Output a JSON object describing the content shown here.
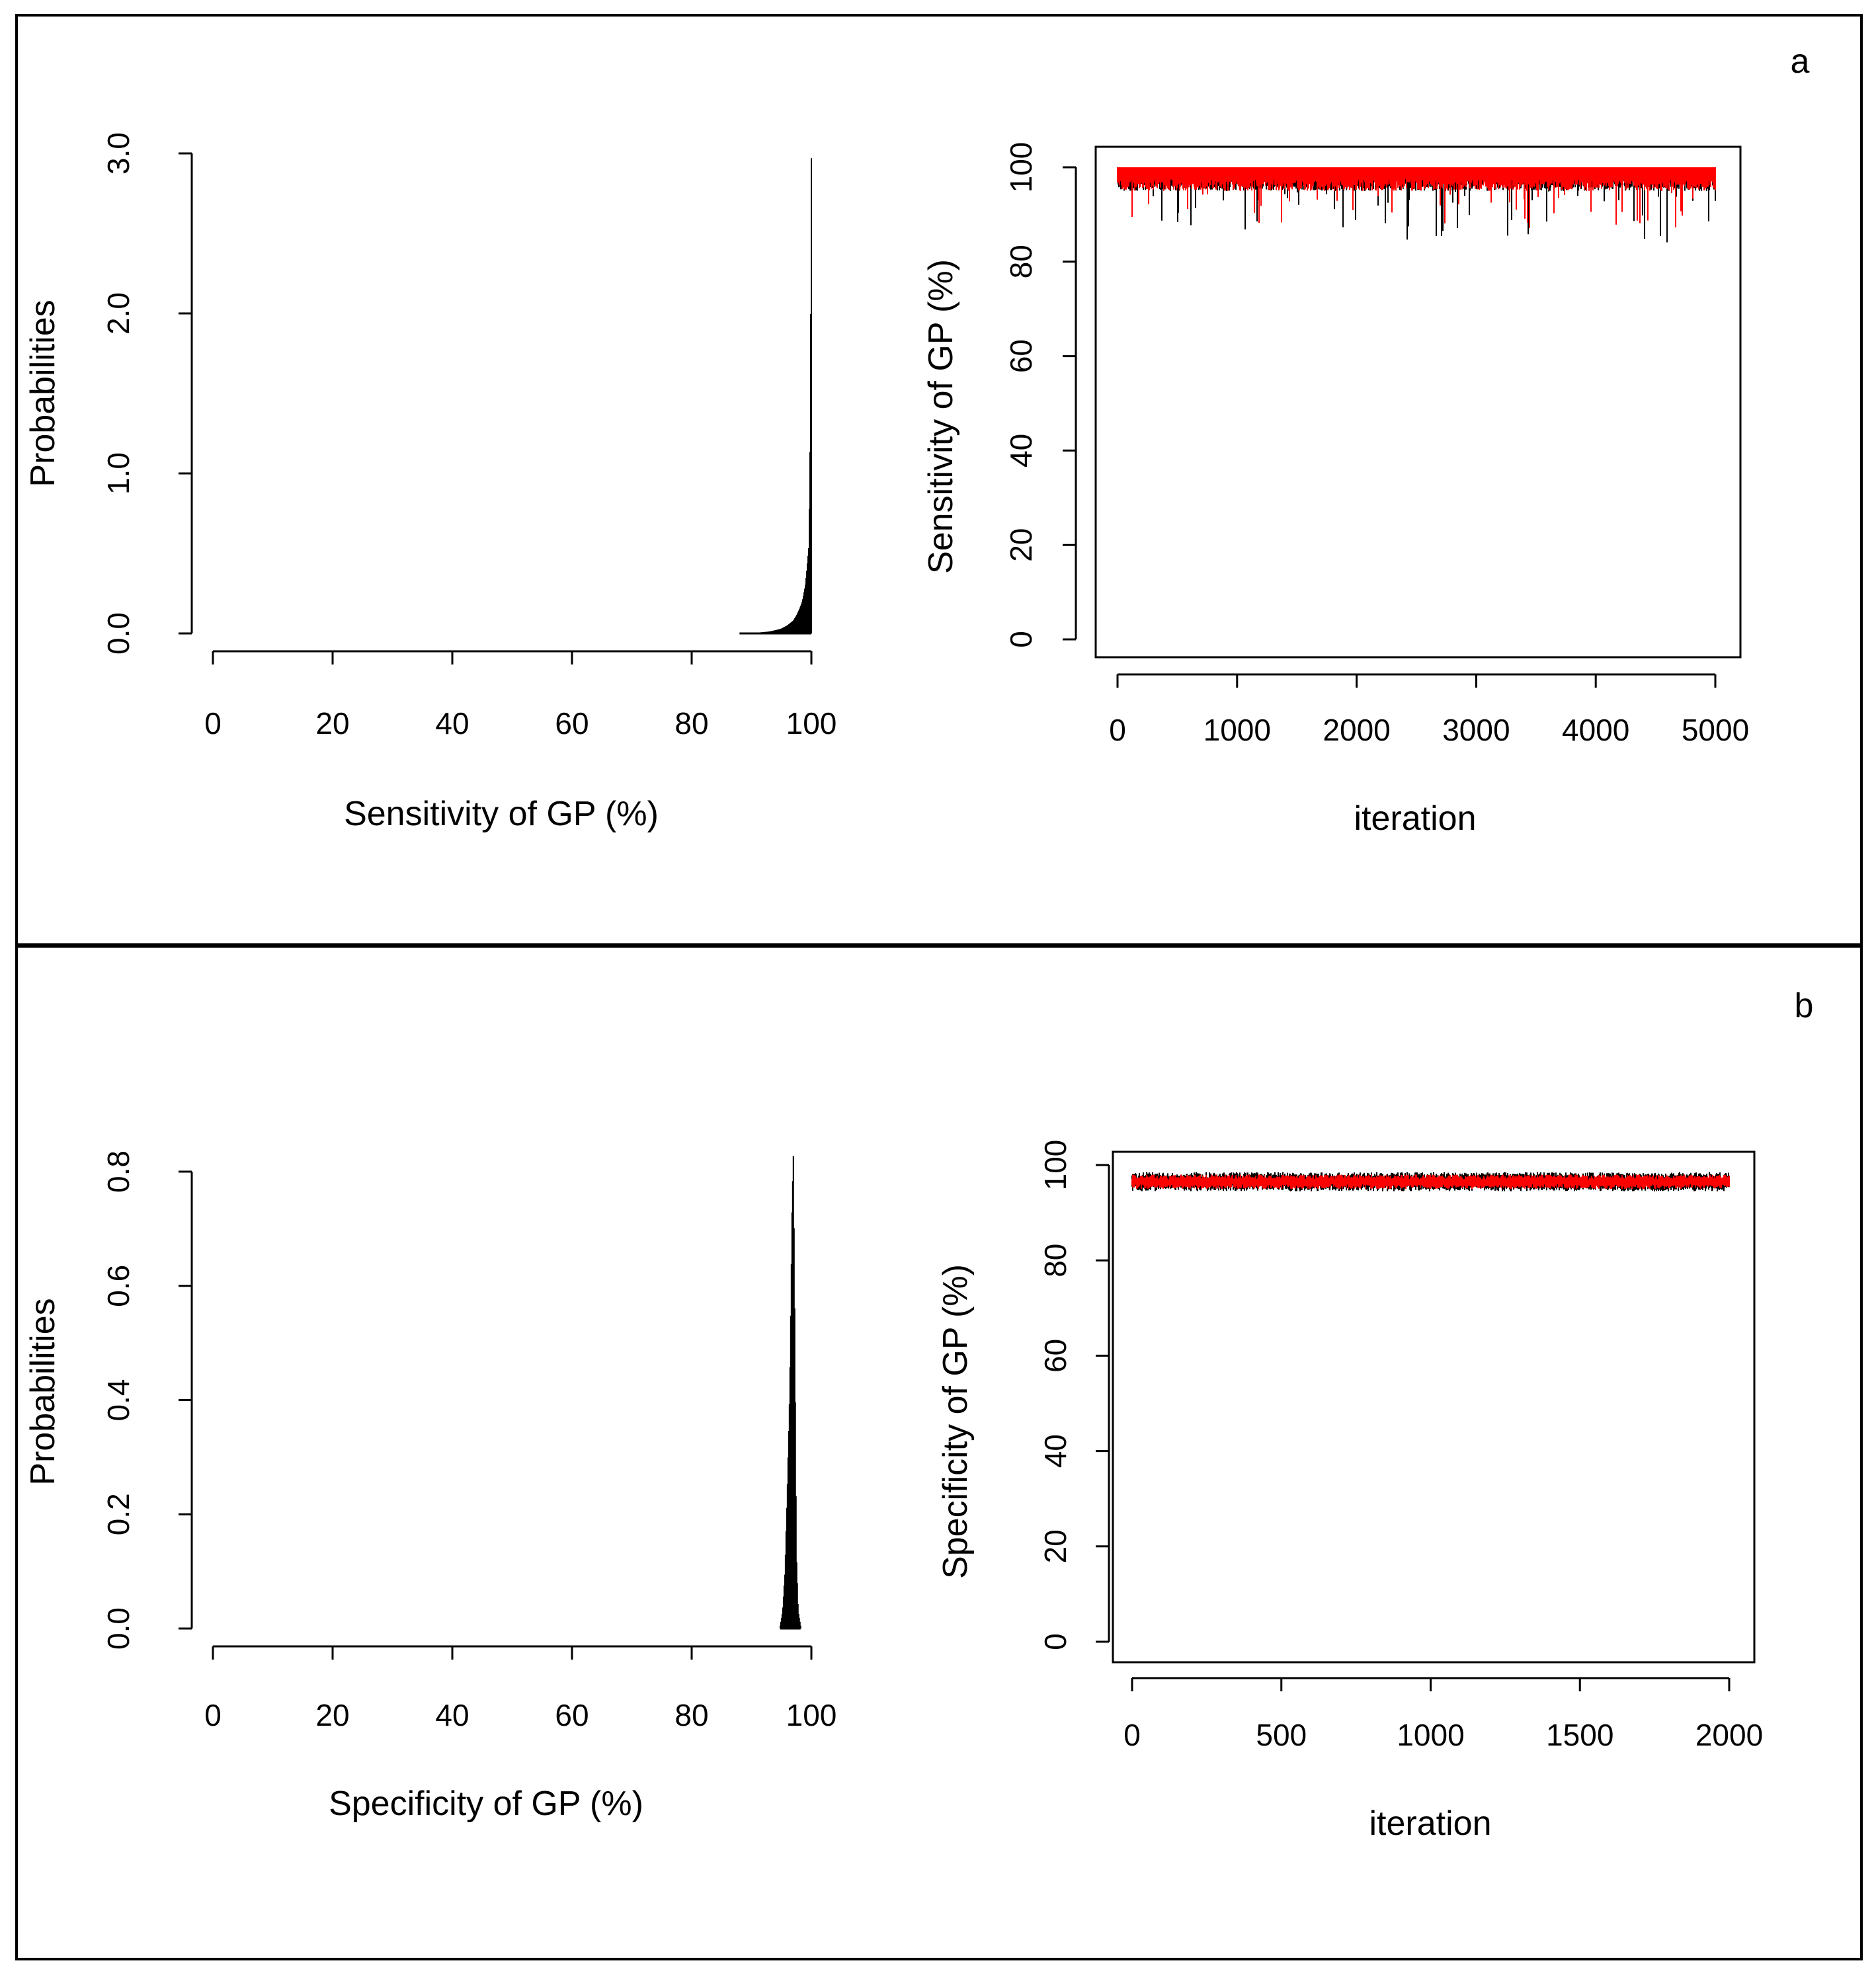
{
  "panels": [
    {
      "letter": "a"
    },
    {
      "letter": "b"
    }
  ],
  "chart_data": [
    {
      "panel": "a",
      "type": "bar",
      "xlabel": "Sensitivity of GP (%)",
      "ylabel": "Probabilities",
      "xlim": [
        0,
        100
      ],
      "ylim": [
        0,
        3.0
      ],
      "xticks": [
        "0",
        "20",
        "40",
        "60",
        "80",
        "100"
      ],
      "yticks": [
        "0.0",
        "1.0",
        "2.0",
        "3.0"
      ],
      "grid": false,
      "density": {
        "x": [
          88,
          90,
          91,
          92,
          93,
          94,
          95,
          96,
          97,
          97.5,
          98,
          98.5,
          99,
          99.3,
          99.6,
          99.8,
          100
        ],
        "y": [
          0.002,
          0.003,
          0.005,
          0.008,
          0.012,
          0.02,
          0.03,
          0.05,
          0.08,
          0.11,
          0.15,
          0.2,
          0.3,
          0.42,
          0.55,
          1.2,
          2.97
        ]
      }
    },
    {
      "panel": "a",
      "type": "line",
      "xlabel": "iteration",
      "ylabel": "Sensitivity of GP (%)",
      "xlim": [
        0,
        5000
      ],
      "ylim": [
        0,
        100
      ],
      "xticks": [
        "0",
        "1000",
        "2000",
        "3000",
        "4000",
        "5000"
      ],
      "yticks": [
        "0",
        "20",
        "40",
        "60",
        "80",
        "100"
      ],
      "grid": false,
      "series": [
        {
          "color": "#000000",
          "baseline": 99,
          "min": 88,
          "n": 5000
        },
        {
          "color": "#ff0000",
          "baseline": 99,
          "min": 91,
          "n": 5000
        }
      ]
    },
    {
      "panel": "b",
      "type": "bar",
      "xlabel": "Specificity of GP (%)",
      "ylabel": "Probabilities",
      "xlim": [
        0,
        100
      ],
      "ylim": [
        0,
        0.8
      ],
      "xticks": [
        "0",
        "20",
        "40",
        "60",
        "80",
        "100"
      ],
      "yticks": [
        "0.0",
        "0.2",
        "0.4",
        "0.6",
        "0.8"
      ],
      "grid": false,
      "density": {
        "x": [
          94.8,
          95.2,
          95.6,
          96.0,
          96.4,
          96.8,
          97.0,
          97.2,
          97.5,
          97.8,
          98.2
        ],
        "y": [
          0.005,
          0.03,
          0.1,
          0.25,
          0.42,
          0.75,
          0.83,
          0.58,
          0.13,
          0.03,
          0.005
        ]
      }
    },
    {
      "panel": "b",
      "type": "line",
      "xlabel": "iteration",
      "ylabel": "Specificity of GP (%)",
      "xlim": [
        0,
        2000
      ],
      "ylim": [
        0,
        100
      ],
      "xticks": [
        "0",
        "500",
        "1000",
        "1500",
        "2000"
      ],
      "yticks": [
        "0",
        "20",
        "40",
        "60",
        "80",
        "100"
      ],
      "grid": false,
      "series": [
        {
          "color": "#000000",
          "baseline": 96.5,
          "min": 94.5,
          "max": 98.5,
          "n": 2000
        },
        {
          "color": "#ff0000",
          "baseline": 96.5,
          "min": 95.0,
          "max": 98.0,
          "n": 2000
        }
      ]
    }
  ]
}
